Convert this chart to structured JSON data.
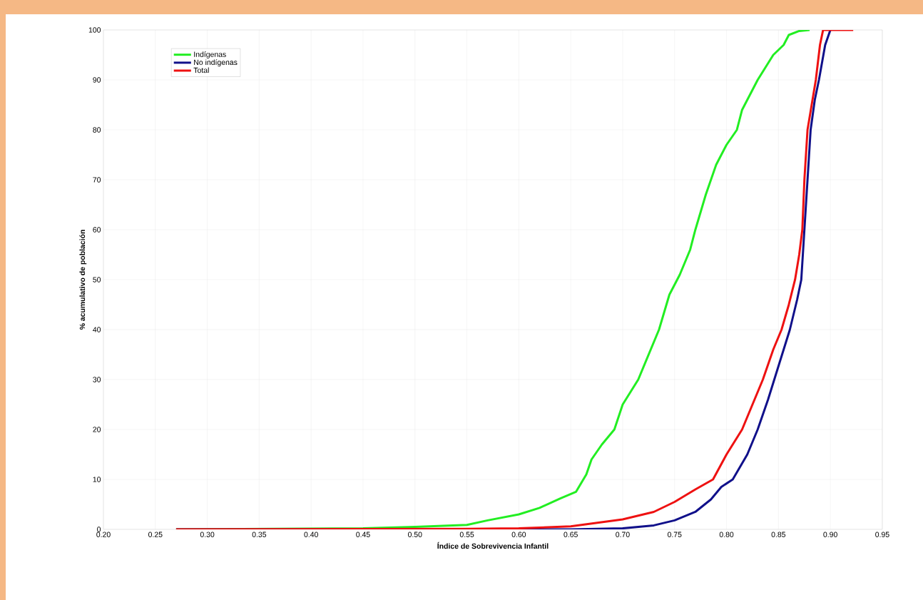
{
  "chart_data": {
    "type": "line",
    "xlabel": "Índice de Sobrevivencia Infantil",
    "ylabel": "% acumulativo de población",
    "xlim": [
      0.2,
      0.95
    ],
    "xticks": [
      {
        "value": 0.2,
        "label": "0.20"
      },
      {
        "value": 0.25,
        "label": "0.25"
      },
      {
        "value": 0.3,
        "label": "0.30"
      },
      {
        "value": 0.35,
        "label": "0.35"
      },
      {
        "value": 0.4,
        "label": "0.40"
      },
      {
        "value": 0.45,
        "label": "0.45"
      },
      {
        "value": 0.5,
        "label": "0.50"
      },
      {
        "value": 0.55,
        "label": "0.55"
      },
      {
        "value": 0.6,
        "label": "0.60"
      },
      {
        "value": 0.65,
        "label": "0.65"
      },
      {
        "value": 0.7,
        "label": "0.70"
      },
      {
        "value": 0.75,
        "label": "0.75"
      },
      {
        "value": 0.8,
        "label": "0.80"
      },
      {
        "value": 0.85,
        "label": "0.85"
      },
      {
        "value": 0.9,
        "label": "0.90"
      },
      {
        "value": 0.95,
        "label": "0.95"
      }
    ],
    "ylim": [
      0,
      100
    ],
    "yticks": [
      0,
      10,
      20,
      30,
      40,
      50,
      60,
      70,
      80,
      90,
      100
    ],
    "grid": true,
    "legend": "top left",
    "marker": "none",
    "line_style": "solid",
    "series": [
      {
        "name": "Indígenas",
        "color": "#22ee22",
        "x": [
          0.27,
          0.45,
          0.5,
          0.55,
          0.57,
          0.6,
          0.62,
          0.64,
          0.655,
          0.665,
          0.67,
          0.68,
          0.692,
          0.7,
          0.715,
          0.725,
          0.735,
          0.745,
          0.755,
          0.765,
          0.77,
          0.78,
          0.79,
          0.8,
          0.81,
          0.815,
          0.83,
          0.845,
          0.855,
          0.86,
          0.87,
          0.88
        ],
        "values": [
          0,
          0.2,
          0.5,
          0.9,
          1.8,
          3,
          4.3,
          6.2,
          7.5,
          11,
          14,
          17,
          20,
          25,
          30,
          35,
          40,
          47,
          51,
          56,
          60,
          67,
          73,
          77,
          80,
          84,
          90,
          95,
          97,
          99,
          99.8,
          100
        ]
      },
      {
        "name": "No indígenas",
        "color": "#10108a",
        "x": [
          0.27,
          0.65,
          0.7,
          0.73,
          0.75,
          0.77,
          0.785,
          0.795,
          0.806,
          0.82,
          0.83,
          0.84,
          0.846,
          0.855,
          0.861,
          0.868,
          0.872,
          0.875,
          0.878,
          0.881,
          0.885,
          0.889,
          0.895,
          0.9
        ],
        "values": [
          0,
          0,
          0.2,
          0.8,
          1.8,
          3.5,
          6,
          8.5,
          10,
          15,
          20,
          26,
          30,
          36,
          40,
          46,
          50,
          60,
          70,
          80,
          86,
          90,
          97,
          100
        ]
      },
      {
        "name": "Total",
        "color": "#ee1111",
        "x": [
          0.27,
          0.55,
          0.6,
          0.65,
          0.7,
          0.73,
          0.75,
          0.77,
          0.787,
          0.8,
          0.815,
          0.825,
          0.835,
          0.845,
          0.853,
          0.86,
          0.866,
          0.87,
          0.873,
          0.875,
          0.878,
          0.882,
          0.886,
          0.89,
          0.893,
          0.922
        ],
        "values": [
          0,
          0.1,
          0.2,
          0.6,
          2,
          3.5,
          5.5,
          8,
          10,
          15,
          20,
          25,
          30,
          36,
          40,
          45,
          50,
          55,
          60,
          70,
          80,
          85,
          90,
          97,
          100,
          100
        ]
      }
    ]
  }
}
